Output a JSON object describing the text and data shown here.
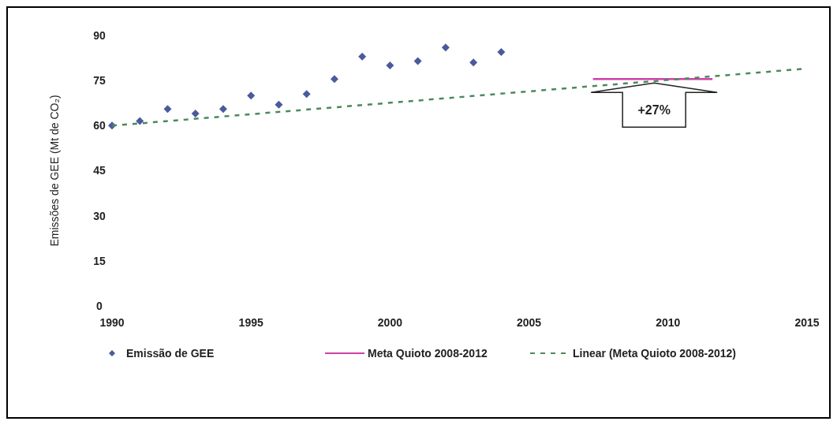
{
  "chart_data": {
    "type": "scatter",
    "ylabel": "Emissões de GEE (Mt de CO₂)",
    "xlim": [
      1990,
      2015
    ],
    "xticks": [
      1990,
      1995,
      2000,
      2005,
      2010,
      2015
    ],
    "ylim": [
      0,
      90
    ],
    "yticks": [
      0,
      15,
      30,
      45,
      60,
      75,
      90
    ],
    "grid": false,
    "legend": "bottom",
    "series": [
      {
        "name": "Emissão de GEE",
        "marker": "diamond",
        "color": "#4a5a9c",
        "x": [
          1990,
          1991,
          1992,
          1993,
          1994,
          1995,
          1996,
          1997,
          1998,
          1999,
          2000,
          2001,
          2002,
          2003,
          2004
        ],
        "values": [
          60,
          61.5,
          65.5,
          64,
          65.5,
          70,
          67,
          70.5,
          75.5,
          83,
          80,
          81.5,
          86,
          81,
          84.5
        ]
      },
      {
        "name": "Meta Quioto 2008-2012",
        "type": "line",
        "marker": "none",
        "line_style": "solid",
        "color": "#d040a8",
        "x": [
          2007.3,
          2011.6
        ],
        "values": [
          75.5,
          75.5
        ]
      },
      {
        "name": "Linear (Meta Quioto 2008-2012)",
        "type": "line",
        "marker": "none",
        "line_style": "dashed",
        "color": "#4a8a5a",
        "x": [
          1990,
          2015
        ],
        "values": [
          60,
          79
        ]
      }
    ],
    "annotations": [
      {
        "text": "+27%",
        "x": 2009.5,
        "y": 75.5
      }
    ]
  }
}
